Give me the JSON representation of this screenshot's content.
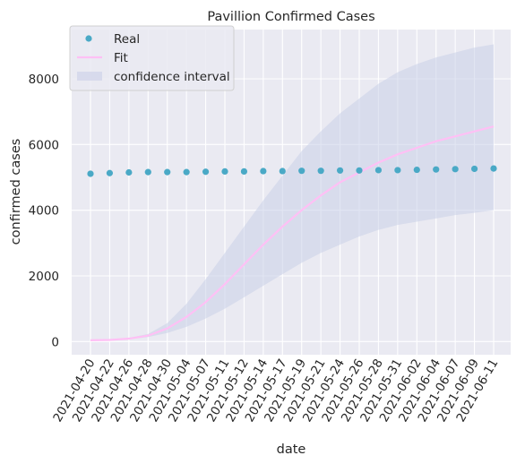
{
  "chart_data": {
    "type": "scatter",
    "title": "Pavillion Confirmed Cases",
    "xlabel": "date",
    "ylabel": "confirmed cases",
    "x_ticks": [
      "2021-04-20",
      "2021-04-22",
      "2021-04-26",
      "2021-04-28",
      "2021-04-30",
      "2021-05-04",
      "2021-05-07",
      "2021-05-11",
      "2021-05-12",
      "2021-05-14",
      "2021-05-17",
      "2021-05-19",
      "2021-05-21",
      "2021-05-24",
      "2021-05-26",
      "2021-05-28",
      "2021-05-31",
      "2021-06-02",
      "2021-06-04",
      "2021-06-07",
      "2021-06-09",
      "2021-06-11"
    ],
    "y_ticks": [
      0,
      2000,
      4000,
      6000,
      8000
    ],
    "ylim": [
      -400,
      9500
    ],
    "grid": true,
    "legend_position": "top-left",
    "series": [
      {
        "name": "Real",
        "kind": "points",
        "color": "#4aa9c6",
        "values": [
          5110,
          5130,
          5150,
          5160,
          5160,
          5160,
          5170,
          5180,
          5180,
          5190,
          5190,
          5200,
          5200,
          5210,
          5210,
          5220,
          5220,
          5230,
          5240,
          5250,
          5260,
          5270
        ]
      },
      {
        "name": "Fit",
        "kind": "line",
        "color": "#ffc0f5",
        "values": [
          40,
          50,
          90,
          180,
          400,
          750,
          1200,
          1750,
          2350,
          2950,
          3500,
          4000,
          4450,
          4850,
          5150,
          5450,
          5700,
          5900,
          6100,
          6250,
          6400,
          6550
        ]
      },
      {
        "name": "confidence interval",
        "kind": "band",
        "color": "#c9cfe8",
        "lower": [
          30,
          40,
          70,
          140,
          260,
          450,
          700,
          1000,
          1350,
          1700,
          2050,
          2400,
          2700,
          2950,
          3200,
          3400,
          3550,
          3650,
          3750,
          3850,
          3920,
          4000
        ],
        "upper": [
          50,
          60,
          110,
          230,
          560,
          1150,
          1900,
          2700,
          3500,
          4300,
          5050,
          5800,
          6400,
          6950,
          7400,
          7850,
          8200,
          8450,
          8650,
          8800,
          8950,
          9050
        ]
      }
    ]
  }
}
